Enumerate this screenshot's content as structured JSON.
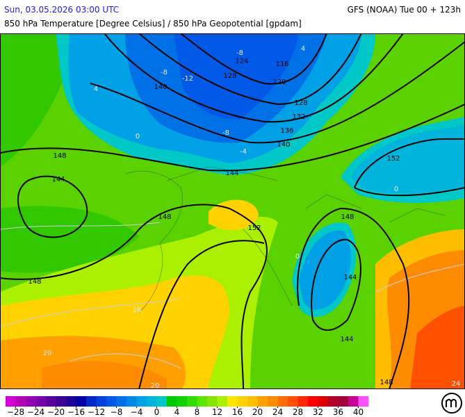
{
  "header": {
    "datetime": "Sun, 03.05.2026 03:00 UTC",
    "model": "GFS (NOAA) Tue 00 + 123h",
    "title": "850 hPa Temperature [Degree Celsius] / 850 hPa Geopotential [gpdam]"
  },
  "map": {
    "geopotential_labels": [
      "124",
      "116",
      "128",
      "120",
      "128",
      "132",
      "136",
      "140",
      "140",
      "144",
      "148",
      "144",
      "148",
      "152",
      "152",
      "148",
      "148",
      "144",
      "144",
      "148"
    ],
    "temperature_labels": [
      "-8",
      "-12",
      "-8",
      "-8",
      "-4",
      "0",
      "4",
      "4",
      "16",
      "20",
      "20",
      "24",
      "0",
      "0"
    ]
  },
  "colorbar": {
    "colors": [
      "#d200d2",
      "#b400b4",
      "#9600b4",
      "#7800a8",
      "#5a009a",
      "#3c0096",
      "#1e0096",
      "#0000a0",
      "#0028c8",
      "#0040dc",
      "#0058e6",
      "#0070e6",
      "#0088e6",
      "#00a0e6",
      "#00b4dc",
      "#00c8c8",
      "#00c800",
      "#10d200",
      "#32dc00",
      "#5ae600",
      "#82e600",
      "#aaf000",
      "#ffe600",
      "#ffd200",
      "#ffbe00",
      "#ffa000",
      "#ff8c00",
      "#ff6e00",
      "#ff5000",
      "#ff2800",
      "#ff0000",
      "#dc0000",
      "#b40028",
      "#a0003c",
      "#c80096",
      "#ff50ff"
    ],
    "ticks": [
      {
        "value": -28,
        "label": "−28"
      },
      {
        "value": -24,
        "label": "−24"
      },
      {
        "value": -20,
        "label": "−20"
      },
      {
        "value": -16,
        "label": "−16"
      },
      {
        "value": -12,
        "label": "−12"
      },
      {
        "value": -8,
        "label": "−8"
      },
      {
        "value": -4,
        "label": "−4"
      },
      0,
      4,
      8,
      12,
      16,
      20,
      24,
      28,
      32,
      36,
      40
    ]
  }
}
